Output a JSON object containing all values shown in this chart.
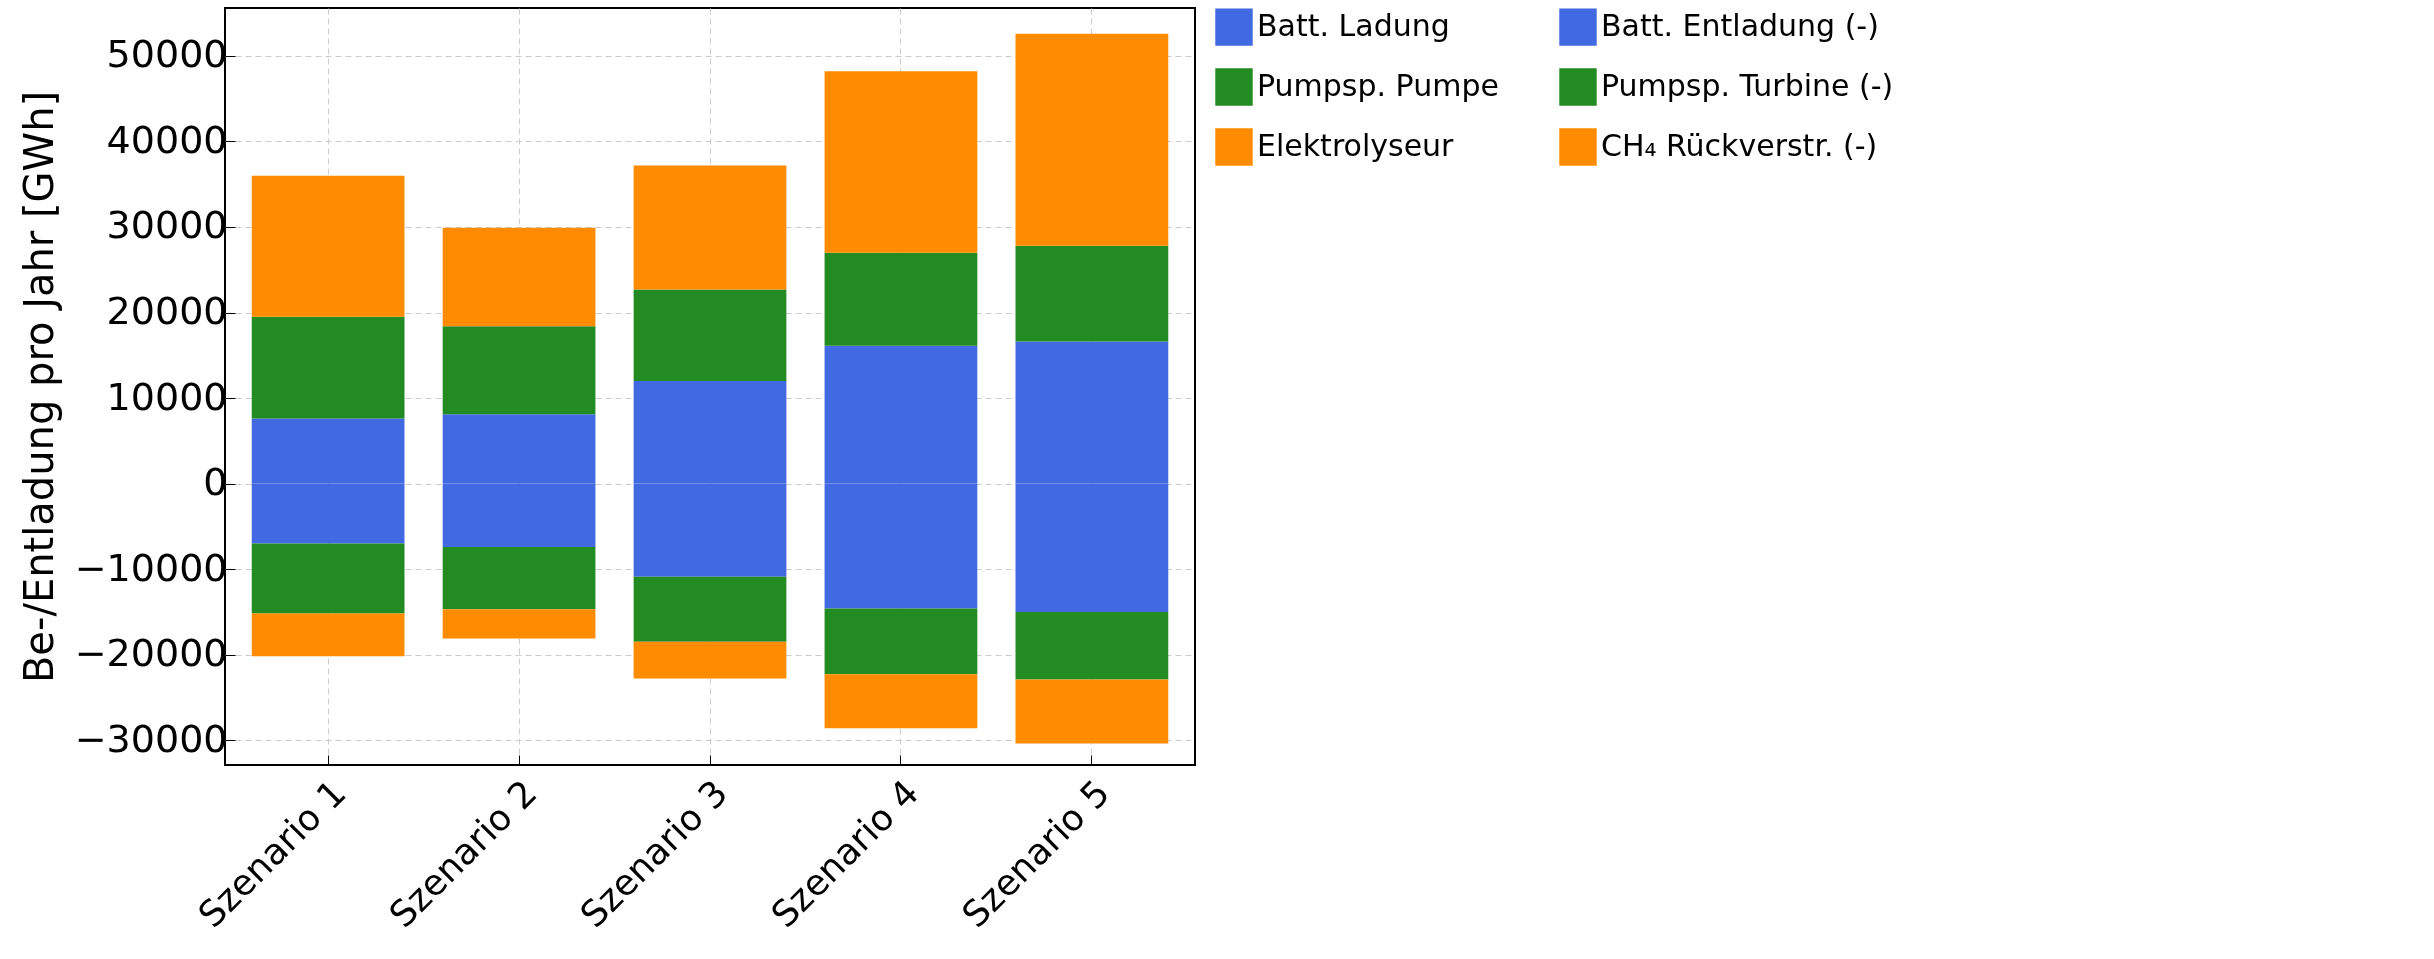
{
  "chart_data": {
    "type": "bar",
    "stacked": true,
    "ylabel": "Be-/Entladung pro Jahr [GWh]",
    "categories": [
      "Szenario 1",
      "Szenario 2",
      "Szenario 3",
      "Szenario 4",
      "Szenario 5"
    ],
    "series": [
      {
        "name": "Batt. Ladung",
        "color": "#4169e1",
        "values": [
          7600,
          8100,
          12000,
          16100,
          16600
        ]
      },
      {
        "name": "Pumpsp. Pumpe",
        "color": "#228b22",
        "values": [
          11900,
          10300,
          10700,
          10900,
          11200
        ]
      },
      {
        "name": "Elektrolyseur",
        "color": "#ff8c00",
        "values": [
          16500,
          11500,
          14500,
          21200,
          24800
        ]
      },
      {
        "name": "Batt. Entladung (-)",
        "color": "#4169e1",
        "values": [
          -7000,
          -7400,
          -10900,
          -14600,
          -15000
        ]
      },
      {
        "name": "Pumpsp. Turbine (-)",
        "color": "#228b22",
        "values": [
          -8200,
          -7300,
          -7600,
          -7700,
          -7900
        ]
      },
      {
        "name": "CH₄ Rückverstr. (-)",
        "color": "#ff8c00",
        "values": [
          -5000,
          -3400,
          -4300,
          -6300,
          -7500
        ]
      }
    ],
    "ylim": [
      -32900,
      55600
    ],
    "yticks": [
      -30000,
      -20000,
      -10000,
      0,
      10000,
      20000,
      30000,
      40000,
      50000
    ],
    "grid": true,
    "legend": "right"
  }
}
